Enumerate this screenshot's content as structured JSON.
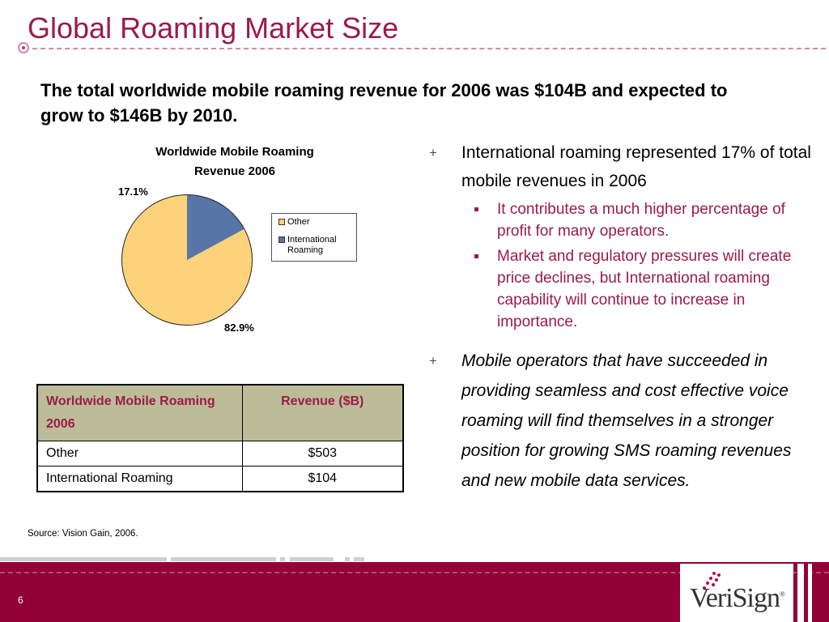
{
  "slide": {
    "title": "Global Roaming Market Size",
    "headline": "The total worldwide mobile roaming revenue for 2006 was $104B and expected to grow to $146B by 2010.",
    "source": "Source: Vision Gain, 2006.",
    "page_number": "6",
    "logo_text": "VeriSign",
    "logo_mark": "®"
  },
  "chart_data": {
    "type": "pie",
    "title_line1": "Worldwide Mobile Roaming",
    "title_line2": "Revenue 2006",
    "slices": [
      {
        "name": "Other",
        "value": 82.9,
        "label": "82.9%",
        "color": "#fcd27a"
      },
      {
        "name": "International Roaming",
        "value": 17.1,
        "label": "17.1%",
        "color": "#5875a8"
      }
    ],
    "legend": [
      "Other",
      "International Roaming"
    ],
    "legend_position": "right"
  },
  "bullets": [
    {
      "text": "International roaming represented 17% of total mobile revenues in 2006",
      "subs": [
        "It contributes a much higher percentage of profit for many operators.",
        "Market and regulatory pressures will create price declines, but International roaming capability will continue to increase in importance."
      ]
    },
    {
      "text": "Mobile operators that have succeeded in providing seamless and cost effective voice roaming will find themselves in a stronger position for growing SMS roaming revenues and new mobile data services."
    }
  ],
  "table": {
    "headers": [
      "Worldwide Mobile Roaming 2006",
      "Revenue ($B)"
    ],
    "rows": [
      [
        "Other",
        "$503"
      ],
      [
        "International Roaming",
        "$104"
      ]
    ]
  },
  "colors": {
    "accent": "#9b1b4a",
    "footer": "#930035",
    "table_header": "#bcbc98",
    "pie_other": "#fcd27a",
    "pie_international": "#5875a8"
  }
}
